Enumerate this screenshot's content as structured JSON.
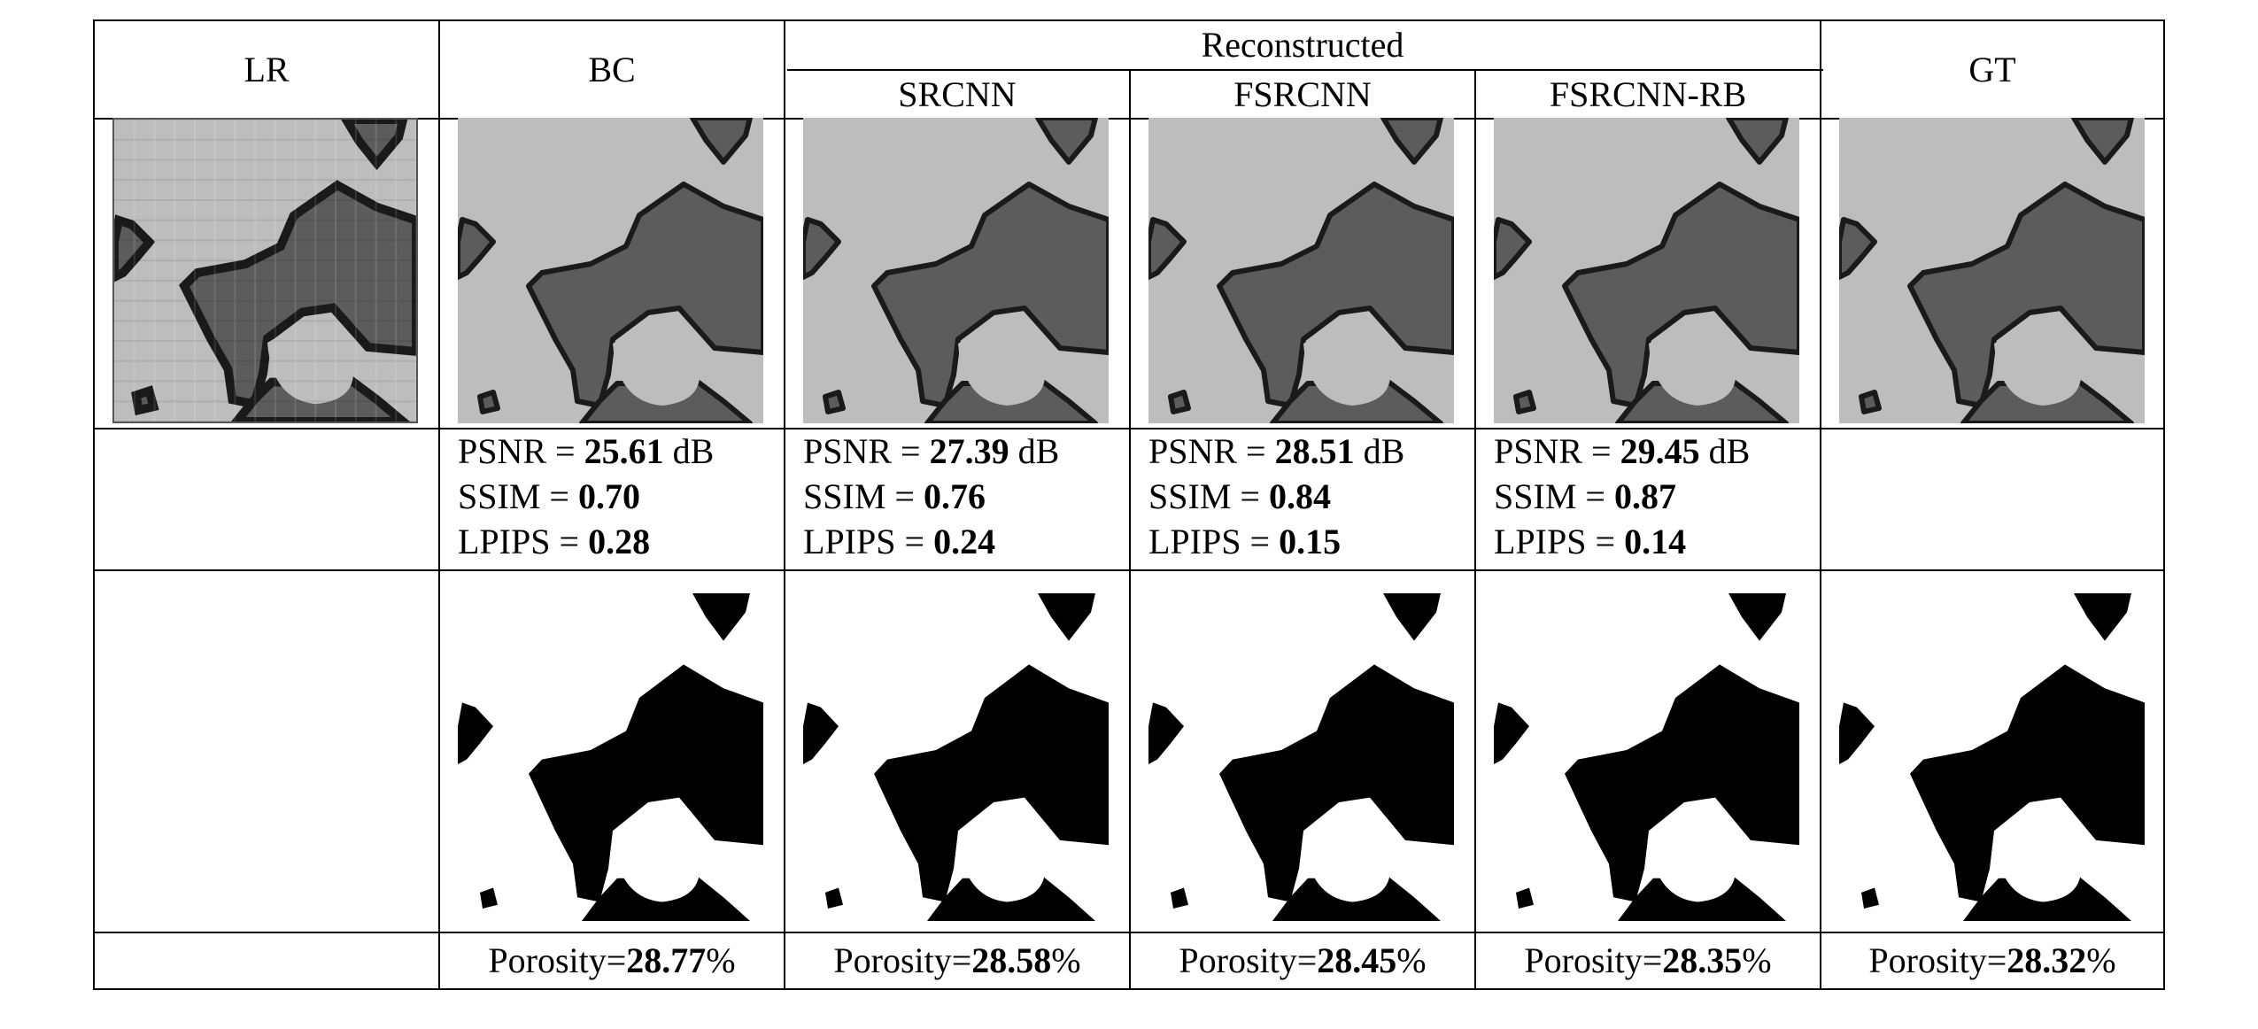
{
  "header": {
    "lr": "LR",
    "bc": "BC",
    "group": "Reconstructed",
    "srcnn": "SRCNN",
    "fsrcnn": "FSRCNN",
    "fsrcnn_rb": "FSRCNN-RB",
    "gt": "GT"
  },
  "labels": {
    "psnr": "PSNR = ",
    "db": " dB",
    "ssim": "SSIM = ",
    "lpips": "LPIPS = ",
    "porosity": "Porosity=",
    "percent": " %"
  },
  "methods": [
    {
      "key": "bc",
      "psnr": "25.61",
      "ssim": "0.70",
      "lpips": "0.28",
      "porosity": "28.77"
    },
    {
      "key": "srcnn",
      "psnr": "27.39",
      "ssim": "0.76",
      "lpips": "0.24",
      "porosity": "28.58"
    },
    {
      "key": "fsrcnn",
      "psnr": "28.51",
      "ssim": "0.84",
      "lpips": "0.15",
      "porosity": "28.45"
    },
    {
      "key": "fsrcnn_rb",
      "psnr": "29.45",
      "ssim": "0.87",
      "lpips": "0.14",
      "porosity": "28.35"
    }
  ],
  "gt": {
    "porosity": "28.32"
  },
  "colors": {
    "grain": "#bdbdbd",
    "pore": "#5c5c5c",
    "edge": "#1a1a1a",
    "binary_pore": "#000000",
    "binary_grain": "#ffffff",
    "rule": "#000000"
  }
}
